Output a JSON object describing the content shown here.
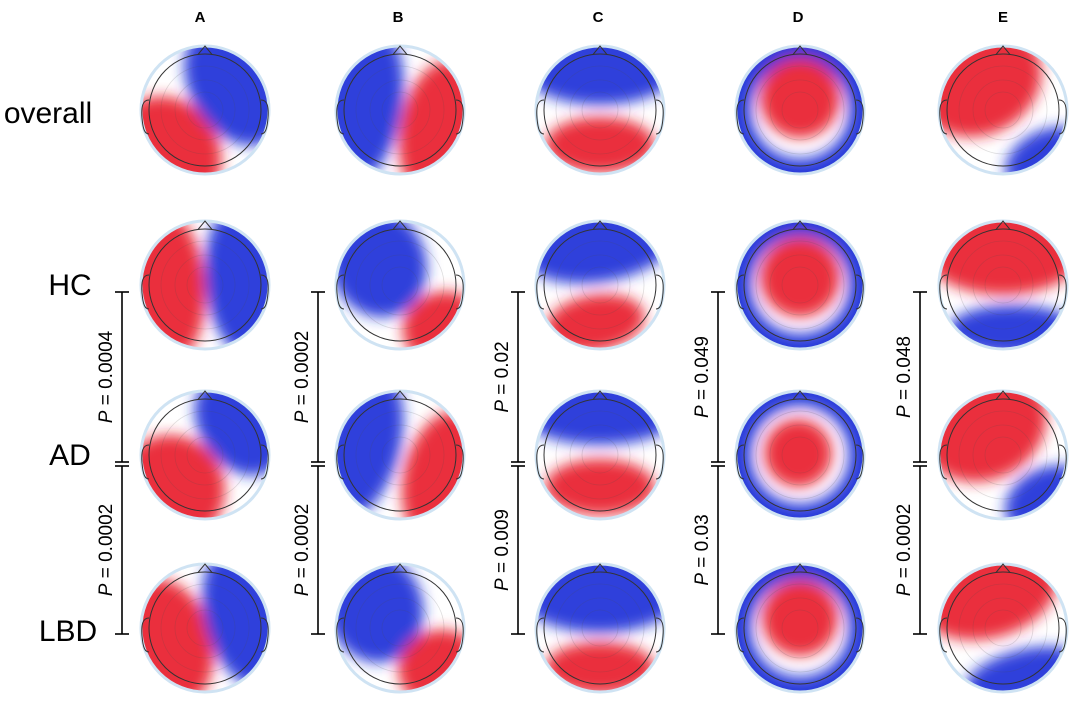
{
  "columns": [
    "A",
    "B",
    "C",
    "D",
    "E"
  ],
  "rows": [
    "overall",
    "HC",
    "AD",
    "LBD"
  ],
  "colors": {
    "positive": "#e8202a",
    "negative": "#1f2fd8",
    "neutral": "#ffffff",
    "outline": "#cfe3f3"
  },
  "p_values": [
    {
      "column": "A",
      "comparison": "HC vs AD",
      "text": "P = 0.0004"
    },
    {
      "column": "A",
      "comparison": "AD vs LBD",
      "text": "P = 0.0002"
    },
    {
      "column": "B",
      "comparison": "HC vs AD",
      "text": "P = 0.0002"
    },
    {
      "column": "B",
      "comparison": "AD vs LBD",
      "text": "P = 0.0002"
    },
    {
      "column": "C",
      "comparison": "HC vs AD",
      "text": "P = 0.02"
    },
    {
      "column": "C",
      "comparison": "AD vs LBD",
      "text": "P = 0.009"
    },
    {
      "column": "D",
      "comparison": "HC vs AD",
      "text": "P = 0.049"
    },
    {
      "column": "D",
      "comparison": "AD vs LBD",
      "text": "P = 0.03"
    },
    {
      "column": "E",
      "comparison": "HC vs AD",
      "text": "P = 0.048"
    },
    {
      "column": "E",
      "comparison": "AD vs LBD",
      "text": "P = 0.0002"
    }
  ],
  "topomaps": [
    {
      "row": "overall",
      "column": "A",
      "pattern": "red lower-left, blue upper-right, diagonal boundary"
    },
    {
      "row": "overall",
      "column": "B",
      "pattern": "blue left, red right"
    },
    {
      "row": "overall",
      "column": "C",
      "pattern": "blue anterior, red posterior"
    },
    {
      "row": "overall",
      "column": "D",
      "pattern": "red center, blue rim"
    },
    {
      "row": "overall",
      "column": "E",
      "pattern": "red upper-left, blue lower-right"
    },
    {
      "row": "HC",
      "column": "A",
      "pattern": "red left, blue right"
    },
    {
      "row": "HC",
      "column": "B",
      "pattern": "blue upper-left, red lower-right"
    },
    {
      "row": "HC",
      "column": "C",
      "pattern": "blue anterior, red posterior"
    },
    {
      "row": "HC",
      "column": "D",
      "pattern": "red center, blue rim"
    },
    {
      "row": "HC",
      "column": "E",
      "pattern": "red anterior, blue posterior"
    },
    {
      "row": "AD",
      "column": "A",
      "pattern": "red lower-left, blue upper-right"
    },
    {
      "row": "AD",
      "column": "B",
      "pattern": "blue left, red right"
    },
    {
      "row": "AD",
      "column": "C",
      "pattern": "blue anterior, red posterior"
    },
    {
      "row": "AD",
      "column": "D",
      "pattern": "red center, blue rim"
    },
    {
      "row": "AD",
      "column": "E",
      "pattern": "red upper-left, blue lower-right"
    },
    {
      "row": "LBD",
      "column": "A",
      "pattern": "red left, blue right"
    },
    {
      "row": "LBD",
      "column": "B",
      "pattern": "blue upper-left, red lower-right"
    },
    {
      "row": "LBD",
      "column": "C",
      "pattern": "blue anterior, red posterior"
    },
    {
      "row": "LBD",
      "column": "D",
      "pattern": "red center, blue rim"
    },
    {
      "row": "LBD",
      "column": "E",
      "pattern": "red upper-left, blue lower-right"
    }
  ]
}
